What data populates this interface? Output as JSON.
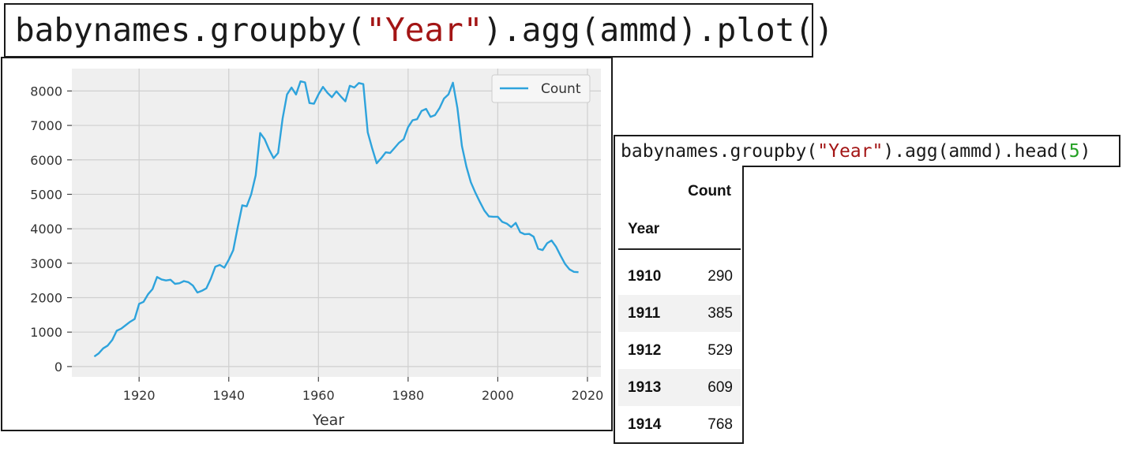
{
  "code_cells": {
    "plot": {
      "pre": "babynames.groupby(",
      "str": "\"Year\"",
      "post": ").agg(ammd).plot()"
    },
    "head": {
      "pre": "babynames.groupby(",
      "str": "\"Year\"",
      "mid": ").agg(ammd).head(",
      "num": "5",
      "post": ")"
    }
  },
  "colors": {
    "line": "#2ea3dc",
    "plot_bg": "#efefef",
    "grid": "#cfcfcf",
    "code_string": "#a31515",
    "code_number": "#22a022"
  },
  "chart_data": {
    "type": "line",
    "xlabel": "Year",
    "ylabel": "",
    "xlim": [
      1905,
      2023
    ],
    "ylim": [
      -300,
      8650
    ],
    "xticks": [
      1920,
      1940,
      1960,
      1980,
      2000,
      2020
    ],
    "yticks": [
      0,
      1000,
      2000,
      3000,
      4000,
      5000,
      6000,
      7000,
      8000
    ],
    "grid": true,
    "legend": "top-right",
    "series": [
      {
        "name": "Count",
        "x": [
          1910,
          1911,
          1912,
          1913,
          1914,
          1915,
          1916,
          1917,
          1918,
          1919,
          1920,
          1921,
          1922,
          1923,
          1924,
          1925,
          1926,
          1927,
          1928,
          1929,
          1930,
          1931,
          1932,
          1933,
          1934,
          1935,
          1936,
          1937,
          1938,
          1939,
          1940,
          1941,
          1942,
          1943,
          1944,
          1945,
          1946,
          1947,
          1948,
          1949,
          1950,
          1951,
          1952,
          1953,
          1954,
          1955,
          1956,
          1957,
          1958,
          1959,
          1960,
          1961,
          1962,
          1963,
          1964,
          1965,
          1966,
          1967,
          1968,
          1969,
          1970,
          1971,
          1972,
          1973,
          1974,
          1975,
          1976,
          1977,
          1978,
          1979,
          1980,
          1981,
          1982,
          1983,
          1984,
          1985,
          1986,
          1987,
          1988,
          1989,
          1990,
          1991,
          1992,
          1993,
          1994,
          1995,
          1996,
          1997,
          1998,
          1999,
          2000,
          2001,
          2002,
          2003,
          2004,
          2005,
          2006,
          2007,
          2008,
          2009,
          2010,
          2011,
          2012,
          2013,
          2014,
          2015,
          2016,
          2017,
          2018
        ],
        "values": [
          290,
          385,
          529,
          609,
          768,
          1040,
          1100,
          1200,
          1300,
          1380,
          1820,
          1880,
          2100,
          2250,
          2600,
          2530,
          2500,
          2520,
          2400,
          2420,
          2480,
          2450,
          2350,
          2150,
          2200,
          2270,
          2550,
          2900,
          2950,
          2870,
          3100,
          3380,
          4050,
          4680,
          4650,
          5000,
          5550,
          6780,
          6600,
          6300,
          6050,
          6200,
          7200,
          7900,
          8100,
          7900,
          8280,
          8250,
          7650,
          7630,
          7900,
          8120,
          7950,
          7820,
          7990,
          7840,
          7700,
          8150,
          8100,
          8230,
          8200,
          6800,
          6330,
          5900,
          6050,
          6220,
          6200,
          6350,
          6500,
          6600,
          6950,
          7150,
          7180,
          7420,
          7480,
          7250,
          7300,
          7500,
          7780,
          7900,
          8240,
          7500,
          6400,
          5800,
          5350,
          5050,
          4780,
          4530,
          4360,
          4350,
          4350,
          4200,
          4150,
          4050,
          4170,
          3900,
          3840,
          3850,
          3770,
          3420,
          3380,
          3580,
          3660,
          3480,
          3220,
          2980,
          2820,
          2750,
          2740
        ]
      }
    ]
  },
  "table": {
    "index_name": "Year",
    "columns": [
      "Count"
    ],
    "rows": [
      {
        "year": "1910",
        "count": "290"
      },
      {
        "year": "1911",
        "count": "385"
      },
      {
        "year": "1912",
        "count": "529"
      },
      {
        "year": "1913",
        "count": "609"
      },
      {
        "year": "1914",
        "count": "768"
      }
    ]
  }
}
